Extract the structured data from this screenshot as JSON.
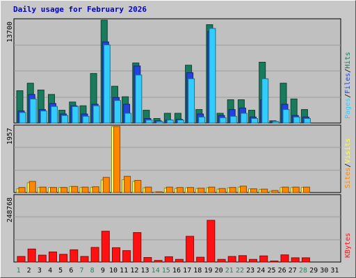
{
  "title": "Daily usage for February 2026",
  "colors": {
    "background": "#c8c8c8",
    "plot_bg": "#c0c0c0",
    "grid": "#9a9a9a",
    "hits": "#1a7a5c",
    "files": "#2244dd",
    "pages": "#33ccff",
    "visits": "#ffff44",
    "sites": "#ff8800",
    "kbytes": "#ff1111",
    "weekday_label": "#000000",
    "weekend_label": "#1a8a5a",
    "title": "#0000cc"
  },
  "chart_data": [
    {
      "type": "bar",
      "panel": "top",
      "ymax_label": "13700",
      "ylim": [
        0,
        13700
      ],
      "legend": [
        {
          "name": "Hits",
          "color": "#1a7a5c"
        },
        {
          "name": "Files",
          "color": "#2244dd"
        },
        {
          "name": "Pages",
          "color": "#33ccff"
        }
      ],
      "series": [
        {
          "name": "Hits",
          "values": [
            4300,
            5300,
            4400,
            3800,
            1700,
            2800,
            2300,
            6600,
            13700,
            4900,
            3500,
            8000,
            1700,
            600,
            1300,
            1300,
            7700,
            1800,
            13100,
            1300,
            3100,
            3100,
            1700,
            8100,
            300,
            5300,
            3200,
            1800
          ]
        },
        {
          "name": "Files",
          "values": [
            1600,
            3800,
            1800,
            2600,
            1200,
            2300,
            1200,
            2500,
            10800,
            3400,
            2500,
            7600,
            600,
            300,
            400,
            500,
            6700,
            1200,
            12200,
            1000,
            1800,
            2000,
            800,
            3100,
            200,
            2500,
            1000,
            800
          ]
        },
        {
          "name": "Pages",
          "values": [
            1400,
            3200,
            1600,
            2200,
            1000,
            2200,
            900,
            2300,
            10400,
            3000,
            1300,
            6400,
            400,
            200,
            400,
            400,
            5900,
            800,
            12600,
            700,
            900,
            1300,
            600,
            5900,
            200,
            1800,
            800,
            600
          ]
        }
      ]
    },
    {
      "type": "bar",
      "panel": "middle",
      "ymax_label": "1957",
      "ylim": [
        0,
        1957
      ],
      "legend": [
        {
          "name": "Visits",
          "color": "#ffff44"
        },
        {
          "name": "Sites",
          "color": "#ff8800"
        }
      ],
      "series": [
        {
          "name": "Visits",
          "values": [
            110,
            290,
            150,
            150,
            150,
            180,
            150,
            150,
            370,
            1957,
            380,
            330,
            140,
            15,
            130,
            120,
            140,
            120,
            140,
            100,
            140,
            160,
            110,
            90,
            40,
            150,
            150,
            150
          ]
        },
        {
          "name": "Sites",
          "values": [
            150,
            330,
            160,
            150,
            150,
            180,
            160,
            170,
            450,
            1957,
            480,
            360,
            160,
            20,
            160,
            150,
            150,
            130,
            160,
            120,
            150,
            190,
            110,
            100,
            60,
            160,
            160,
            160
          ]
        }
      ]
    },
    {
      "type": "bar",
      "panel": "bottom",
      "ymax_label": "248768",
      "ylim": [
        0,
        248768
      ],
      "legend": [
        {
          "name": "KBytes",
          "color": "#ff1111"
        }
      ],
      "series": [
        {
          "name": "KBytes",
          "values": [
            21000,
            49000,
            26000,
            38000,
            29000,
            46000,
            21000,
            55000,
            116000,
            54000,
            43000,
            111000,
            17000,
            6000,
            20000,
            10000,
            97000,
            18000,
            157000,
            10000,
            21000,
            24000,
            10000,
            23000,
            4000,
            27000,
            16000,
            16000
          ]
        }
      ]
    }
  ],
  "days": [
    {
      "label": "1",
      "weekend": true
    },
    {
      "label": "2",
      "weekend": false
    },
    {
      "label": "3",
      "weekend": false
    },
    {
      "label": "4",
      "weekend": false
    },
    {
      "label": "5",
      "weekend": false
    },
    {
      "label": "6",
      "weekend": false
    },
    {
      "label": "7",
      "weekend": true
    },
    {
      "label": "8",
      "weekend": true
    },
    {
      "label": "9",
      "weekend": false
    },
    {
      "label": "10",
      "weekend": false
    },
    {
      "label": "11",
      "weekend": false
    },
    {
      "label": "12",
      "weekend": false
    },
    {
      "label": "13",
      "weekend": false
    },
    {
      "label": "14",
      "weekend": true
    },
    {
      "label": "15",
      "weekend": true
    },
    {
      "label": "16",
      "weekend": false
    },
    {
      "label": "17",
      "weekend": false
    },
    {
      "label": "18",
      "weekend": false
    },
    {
      "label": "19",
      "weekend": false
    },
    {
      "label": "20",
      "weekend": false
    },
    {
      "label": "21",
      "weekend": true
    },
    {
      "label": "22",
      "weekend": true
    },
    {
      "label": "23",
      "weekend": false
    },
    {
      "label": "24",
      "weekend": false
    },
    {
      "label": "25",
      "weekend": false
    },
    {
      "label": "26",
      "weekend": false
    },
    {
      "label": "27",
      "weekend": false
    },
    {
      "label": "28",
      "weekend": true
    },
    {
      "label": "29",
      "weekend": false
    },
    {
      "label": "30",
      "weekend": false
    },
    {
      "label": "31",
      "weekend": false
    }
  ]
}
